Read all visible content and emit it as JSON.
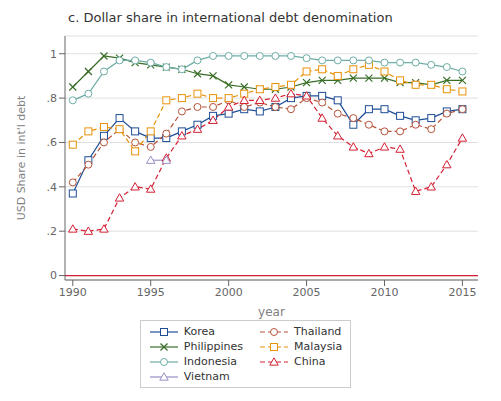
{
  "chart_data": {
    "type": "line",
    "title": "c. Dollar share in international debt denomination",
    "x_label": "year",
    "y_label": "USD Share in int'l debt",
    "x": [
      1990,
      1991,
      1992,
      1993,
      1994,
      1995,
      1996,
      1997,
      1998,
      1999,
      2000,
      2001,
      2002,
      2003,
      2004,
      2005,
      2006,
      2007,
      2008,
      2009,
      2010,
      2011,
      2012,
      2013,
      2014,
      2015
    ],
    "xlim": [
      1989.5,
      2016.0
    ],
    "xticks": [
      1990,
      1995,
      2000,
      2005,
      2010,
      2015
    ],
    "ylim": [
      -0.02,
      1.08
    ],
    "yticks": [
      0,
      {
        "value": 0.2,
        "label": ".2"
      },
      {
        "value": 0.4,
        "label": ".4"
      },
      {
        "value": 0.6,
        "label": ".6"
      },
      {
        "value": 0.8,
        "label": ".8"
      },
      1
    ],
    "grid": true,
    "legend": "bottom",
    "hline": {
      "value": 0,
      "color": "#d42033"
    },
    "series": [
      {
        "name": "Korea",
        "color": "#1f4e96",
        "marker": "square",
        "line_style": "solid",
        "values": [
          0.37,
          0.52,
          0.63,
          0.71,
          0.65,
          0.62,
          0.62,
          0.65,
          0.68,
          0.72,
          0.73,
          0.75,
          0.74,
          0.76,
          0.8,
          0.81,
          0.81,
          0.79,
          0.68,
          0.75,
          0.75,
          0.72,
          0.7,
          0.71,
          0.74,
          0.75
        ]
      },
      {
        "name": "Thailand",
        "color": "#b5533a",
        "marker": "circle",
        "line_style": "dashed",
        "values": [
          0.42,
          0.5,
          0.6,
          0.66,
          0.6,
          0.58,
          0.64,
          0.74,
          0.76,
          0.76,
          0.79,
          0.76,
          0.78,
          0.76,
          0.75,
          0.8,
          0.78,
          0.73,
          0.71,
          0.68,
          0.65,
          0.65,
          0.68,
          0.66,
          0.73,
          0.75
        ]
      },
      {
        "name": "Philippines",
        "color": "#3a6e28",
        "marker": "x",
        "line_style": "solid",
        "values": [
          0.85,
          0.92,
          0.99,
          0.98,
          0.96,
          0.95,
          0.94,
          0.93,
          0.91,
          0.9,
          0.86,
          0.85,
          0.84,
          0.84,
          0.85,
          0.87,
          0.88,
          0.88,
          0.89,
          0.89,
          0.89,
          0.87,
          0.87,
          0.86,
          0.88,
          0.88
        ]
      },
      {
        "name": "Malaysia",
        "color": "#e8920a",
        "marker": "square",
        "line_style": "dashed",
        "values": [
          0.59,
          0.65,
          0.67,
          0.66,
          0.56,
          0.65,
          0.79,
          0.8,
          0.82,
          0.8,
          0.8,
          0.82,
          0.84,
          0.85,
          0.86,
          0.92,
          0.93,
          0.9,
          0.93,
          0.95,
          0.92,
          0.88,
          0.86,
          0.86,
          0.84,
          0.83
        ]
      },
      {
        "name": "Indonesia",
        "color": "#6dada6",
        "marker": "circle",
        "line_style": "solid",
        "values": [
          0.79,
          0.82,
          0.92,
          0.97,
          0.97,
          0.96,
          0.94,
          0.93,
          0.97,
          0.99,
          0.99,
          0.99,
          0.99,
          0.99,
          0.99,
          0.98,
          0.97,
          0.97,
          0.97,
          0.97,
          0.96,
          0.96,
          0.96,
          0.95,
          0.94,
          0.92
        ]
      },
      {
        "name": "China",
        "color": "#d42033",
        "marker": "triangle",
        "line_style": "dashed",
        "values": [
          0.21,
          0.2,
          0.21,
          0.35,
          0.4,
          0.39,
          0.53,
          0.63,
          0.66,
          0.7,
          0.76,
          0.79,
          0.79,
          0.8,
          0.82,
          0.81,
          0.71,
          0.63,
          0.58,
          0.55,
          0.58,
          0.57,
          0.38,
          0.4,
          0.5,
          0.62
        ]
      },
      {
        "name": "Vietnam",
        "color": "#9b8ec4",
        "marker": "triangle",
        "line_style": "solid",
        "values": [
          null,
          null,
          null,
          null,
          null,
          0.52,
          0.52,
          null,
          null,
          null,
          null,
          null,
          null,
          null,
          null,
          null,
          null,
          null,
          null,
          null,
          null,
          null,
          null,
          null,
          null,
          null
        ]
      }
    ]
  }
}
